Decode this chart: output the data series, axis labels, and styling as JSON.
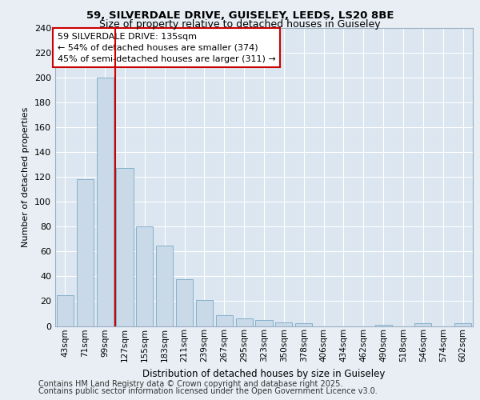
{
  "title1": "59, SILVERDALE DRIVE, GUISELEY, LEEDS, LS20 8BE",
  "title2": "Size of property relative to detached houses in Guiseley",
  "xlabel": "Distribution of detached houses by size in Guiseley",
  "ylabel": "Number of detached properties",
  "bar_labels": [
    "43sqm",
    "71sqm",
    "99sqm",
    "127sqm",
    "155sqm",
    "183sqm",
    "211sqm",
    "239sqm",
    "267sqm",
    "295sqm",
    "323sqm",
    "350sqm",
    "378sqm",
    "406sqm",
    "434sqm",
    "462sqm",
    "490sqm",
    "518sqm",
    "546sqm",
    "574sqm",
    "602sqm"
  ],
  "bar_values": [
    25,
    118,
    200,
    127,
    80,
    65,
    38,
    21,
    9,
    6,
    5,
    3,
    2,
    0,
    0,
    0,
    1,
    0,
    2,
    0,
    2
  ],
  "bar_color": "#c9d9e8",
  "bar_edgecolor": "#7aaac8",
  "vline_x_index": 3,
  "vline_color": "#cc0000",
  "annotation_text": "59 SILVERDALE DRIVE: 135sqm\n← 54% of detached houses are smaller (374)\n45% of semi-detached houses are larger (311) →",
  "annotation_box_color": "#ffffff",
  "annotation_box_edgecolor": "#cc0000",
  "bg_color": "#e8eef4",
  "plot_bg_color": "#dce6f0",
  "grid_color": "#ffffff",
  "ylim": [
    0,
    240
  ],
  "yticks": [
    0,
    20,
    40,
    60,
    80,
    100,
    120,
    140,
    160,
    180,
    200,
    220,
    240
  ],
  "footer1": "Contains HM Land Registry data © Crown copyright and database right 2025.",
  "footer2": "Contains public sector information licensed under the Open Government Licence v3.0."
}
